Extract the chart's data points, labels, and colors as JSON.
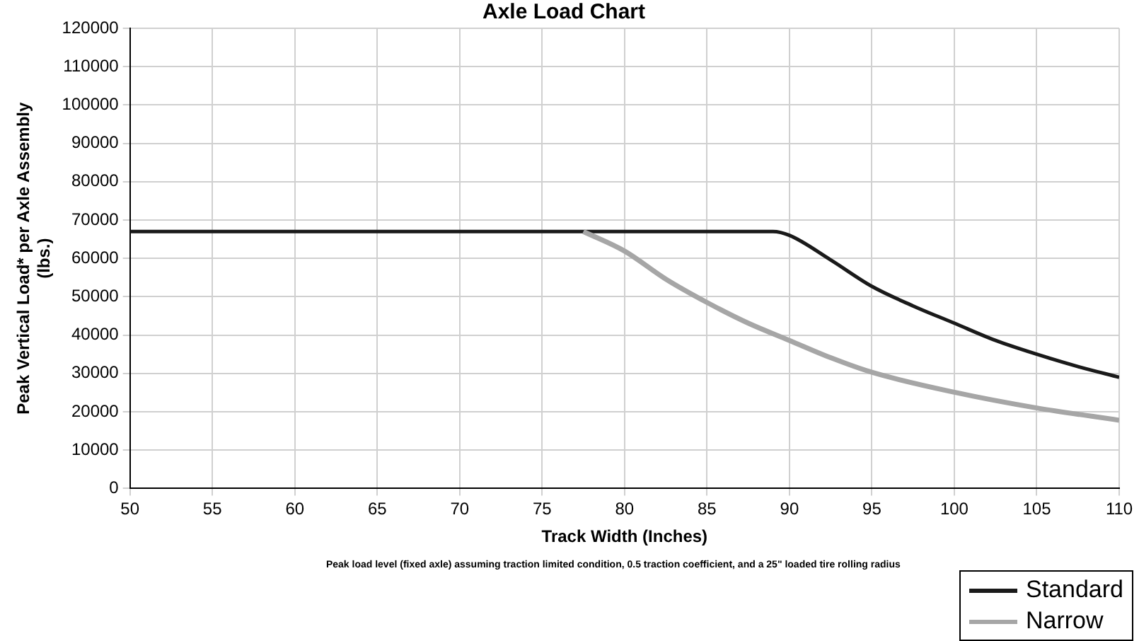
{
  "chart_data": {
    "type": "line",
    "title": "Axle Load Chart",
    "xlabel": "Track Width (Inches)",
    "ylabel": "Peak Vertical Load* per Axle Assembly\n(lbs.)",
    "annotations": [
      "Peak load level (fixed axle) assuming traction limited condition, 0.5 traction coefficient, and a 25\" loaded tire rolling radius"
    ],
    "xlim": [
      50,
      110
    ],
    "xticks": [
      50,
      55,
      60,
      65,
      70,
      75,
      80,
      85,
      90,
      95,
      100,
      105,
      110
    ],
    "ylim": [
      0,
      120000
    ],
    "yticks": [
      0,
      10000,
      20000,
      30000,
      40000,
      50000,
      60000,
      70000,
      80000,
      90000,
      100000,
      110000,
      120000
    ],
    "grid": true,
    "legend": "bottom right",
    "marker": "none",
    "line_style": "solid",
    "series": [
      {
        "name": "Standard",
        "color": "#1a1a1a",
        "x": [
          50,
          89,
          90,
          92.5,
          95,
          97.5,
          100,
          102.5,
          105,
          107.5,
          110
        ],
        "values": [
          67000,
          67000,
          66000,
          59600,
          52700,
          47600,
          43100,
          38600,
          35000,
          31800,
          29000
        ]
      },
      {
        "name": "Narrow",
        "color": "#a6a6a6",
        "x": [
          77.5,
          80,
          82.5,
          85,
          87.5,
          90,
          92.5,
          95,
          100,
          105,
          110
        ],
        "values": [
          67000,
          61900,
          54600,
          48500,
          43100,
          38600,
          34100,
          30300,
          25100,
          21000,
          17800
        ]
      }
    ]
  }
}
